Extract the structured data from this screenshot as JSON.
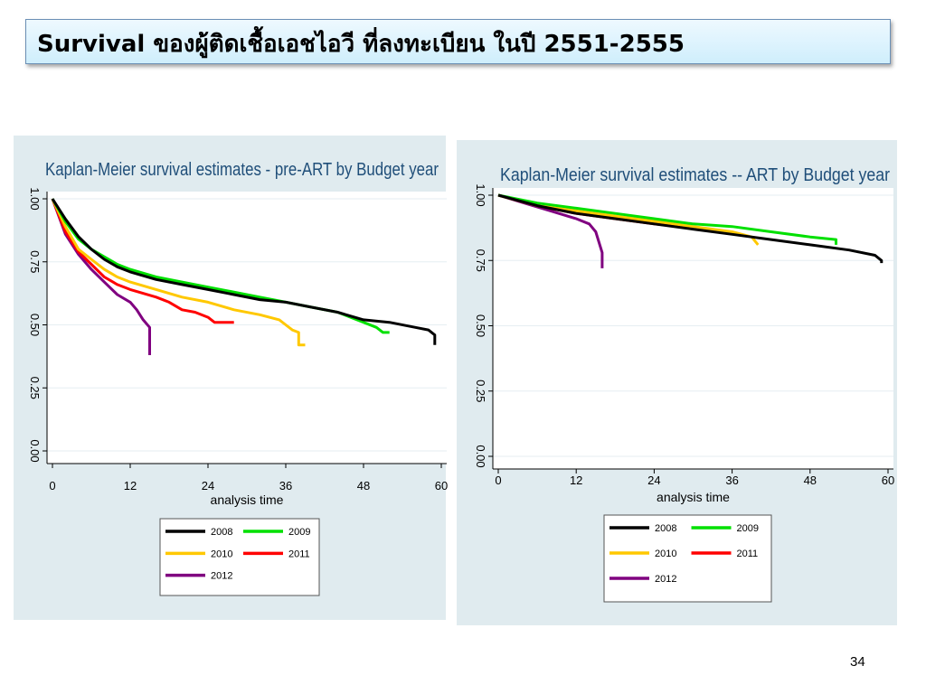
{
  "slide": {
    "title": "Survival ของผู้ติดเชื้อเอชไอวี ที่ลงทะเบียน ในปี 2551-2555",
    "page_number": "34"
  },
  "chart_data": [
    {
      "type": "line",
      "title": "Kaplan-Meier survival estimates - pre-ART by Budget year",
      "xlabel": "analysis time",
      "ylabel": "",
      "xlim": [
        0,
        60
      ],
      "ylim": [
        0,
        1
      ],
      "xticks": [
        "0",
        "12",
        "24",
        "36",
        "48",
        "60"
      ],
      "yticks": [
        "0.00",
        "0.25",
        "0.50",
        "0.75",
        "1.00"
      ],
      "grid": true,
      "legend": "bottom",
      "series": [
        {
          "name": "2008",
          "color": "#000000",
          "points": [
            [
              0,
              1.0
            ],
            [
              2,
              0.92
            ],
            [
              4,
              0.85
            ],
            [
              6,
              0.8
            ],
            [
              8,
              0.76
            ],
            [
              10,
              0.73
            ],
            [
              12,
              0.71
            ],
            [
              16,
              0.68
            ],
            [
              20,
              0.66
            ],
            [
              24,
              0.64
            ],
            [
              28,
              0.62
            ],
            [
              32,
              0.6
            ],
            [
              36,
              0.59
            ],
            [
              40,
              0.57
            ],
            [
              44,
              0.55
            ],
            [
              48,
              0.52
            ],
            [
              52,
              0.51
            ],
            [
              56,
              0.49
            ],
            [
              58,
              0.48
            ],
            [
              59,
              0.46
            ],
            [
              59,
              0.42
            ]
          ]
        },
        {
          "name": "2009",
          "color": "#00e000",
          "points": [
            [
              0,
              1.0
            ],
            [
              2,
              0.91
            ],
            [
              4,
              0.84
            ],
            [
              6,
              0.8
            ],
            [
              8,
              0.77
            ],
            [
              10,
              0.74
            ],
            [
              12,
              0.72
            ],
            [
              16,
              0.69
            ],
            [
              20,
              0.67
            ],
            [
              24,
              0.65
            ],
            [
              28,
              0.63
            ],
            [
              32,
              0.61
            ],
            [
              36,
              0.59
            ],
            [
              40,
              0.57
            ],
            [
              44,
              0.55
            ],
            [
              48,
              0.51
            ],
            [
              50,
              0.49
            ],
            [
              51,
              0.47
            ],
            [
              52,
              0.47
            ]
          ]
        },
        {
          "name": "2010",
          "color": "#ffc800",
          "points": [
            [
              0,
              1.0
            ],
            [
              2,
              0.89
            ],
            [
              4,
              0.8
            ],
            [
              6,
              0.76
            ],
            [
              8,
              0.72
            ],
            [
              10,
              0.69
            ],
            [
              12,
              0.67
            ],
            [
              16,
              0.64
            ],
            [
              20,
              0.61
            ],
            [
              24,
              0.59
            ],
            [
              28,
              0.56
            ],
            [
              32,
              0.54
            ],
            [
              35,
              0.52
            ],
            [
              36,
              0.5
            ],
            [
              37,
              0.48
            ],
            [
              38,
              0.47
            ],
            [
              38,
              0.42
            ],
            [
              39,
              0.42
            ]
          ]
        },
        {
          "name": "2011",
          "color": "#ff0000",
          "points": [
            [
              0,
              1.0
            ],
            [
              2,
              0.87
            ],
            [
              4,
              0.79
            ],
            [
              6,
              0.74
            ],
            [
              8,
              0.69
            ],
            [
              10,
              0.66
            ],
            [
              12,
              0.64
            ],
            [
              16,
              0.61
            ],
            [
              18,
              0.59
            ],
            [
              20,
              0.56
            ],
            [
              22,
              0.55
            ],
            [
              24,
              0.53
            ],
            [
              25,
              0.51
            ],
            [
              28,
              0.51
            ]
          ]
        },
        {
          "name": "2012",
          "color": "#800080",
          "points": [
            [
              0,
              1.0
            ],
            [
              2,
              0.86
            ],
            [
              4,
              0.78
            ],
            [
              6,
              0.72
            ],
            [
              8,
              0.67
            ],
            [
              10,
              0.62
            ],
            [
              12,
              0.59
            ],
            [
              13,
              0.56
            ],
            [
              14,
              0.52
            ],
            [
              15,
              0.49
            ],
            [
              15,
              0.38
            ]
          ]
        }
      ]
    },
    {
      "type": "line",
      "title": "Kaplan-Meier survival estimates -- ART by Budget year",
      "xlabel": "analysis time",
      "ylabel": "",
      "xlim": [
        0,
        60
      ],
      "ylim": [
        0,
        1
      ],
      "xticks": [
        "0",
        "12",
        "24",
        "36",
        "48",
        "60"
      ],
      "yticks": [
        "0.00",
        "0.25",
        "0.50",
        "0.75",
        "1.00"
      ],
      "grid": true,
      "legend": "bottom",
      "series": [
        {
          "name": "2008",
          "color": "#000000",
          "points": [
            [
              0,
              1.0
            ],
            [
              6,
              0.96
            ],
            [
              12,
              0.93
            ],
            [
              18,
              0.91
            ],
            [
              24,
              0.89
            ],
            [
              30,
              0.87
            ],
            [
              36,
              0.85
            ],
            [
              42,
              0.83
            ],
            [
              48,
              0.81
            ],
            [
              54,
              0.79
            ],
            [
              58,
              0.77
            ],
            [
              59,
              0.75
            ],
            [
              59,
              0.74
            ]
          ]
        },
        {
          "name": "2009",
          "color": "#00e000",
          "points": [
            [
              0,
              1.0
            ],
            [
              6,
              0.97
            ],
            [
              12,
              0.95
            ],
            [
              18,
              0.93
            ],
            [
              24,
              0.91
            ],
            [
              30,
              0.89
            ],
            [
              36,
              0.88
            ],
            [
              42,
              0.86
            ],
            [
              48,
              0.84
            ],
            [
              52,
              0.83
            ],
            [
              52,
              0.81
            ]
          ]
        },
        {
          "name": "2010",
          "color": "#ffc800",
          "points": [
            [
              0,
              1.0
            ],
            [
              6,
              0.96
            ],
            [
              12,
              0.94
            ],
            [
              18,
              0.92
            ],
            [
              24,
              0.9
            ],
            [
              30,
              0.88
            ],
            [
              36,
              0.86
            ],
            [
              39,
              0.84
            ],
            [
              40,
              0.81
            ]
          ]
        },
        {
          "name": "2011",
          "color": "#ff0000",
          "points": [
            [
              0,
              1.0
            ],
            [
              6,
              0.96
            ],
            [
              12,
              0.93
            ],
            [
              18,
              0.91
            ],
            [
              24,
              0.89
            ],
            [
              28,
              0.88
            ]
          ]
        },
        {
          "name": "2012",
          "color": "#800080",
          "points": [
            [
              0,
              1.0
            ],
            [
              4,
              0.97
            ],
            [
              8,
              0.94
            ],
            [
              12,
              0.91
            ],
            [
              14,
              0.89
            ],
            [
              15,
              0.86
            ],
            [
              16,
              0.78
            ],
            [
              16,
              0.72
            ]
          ]
        }
      ]
    }
  ]
}
